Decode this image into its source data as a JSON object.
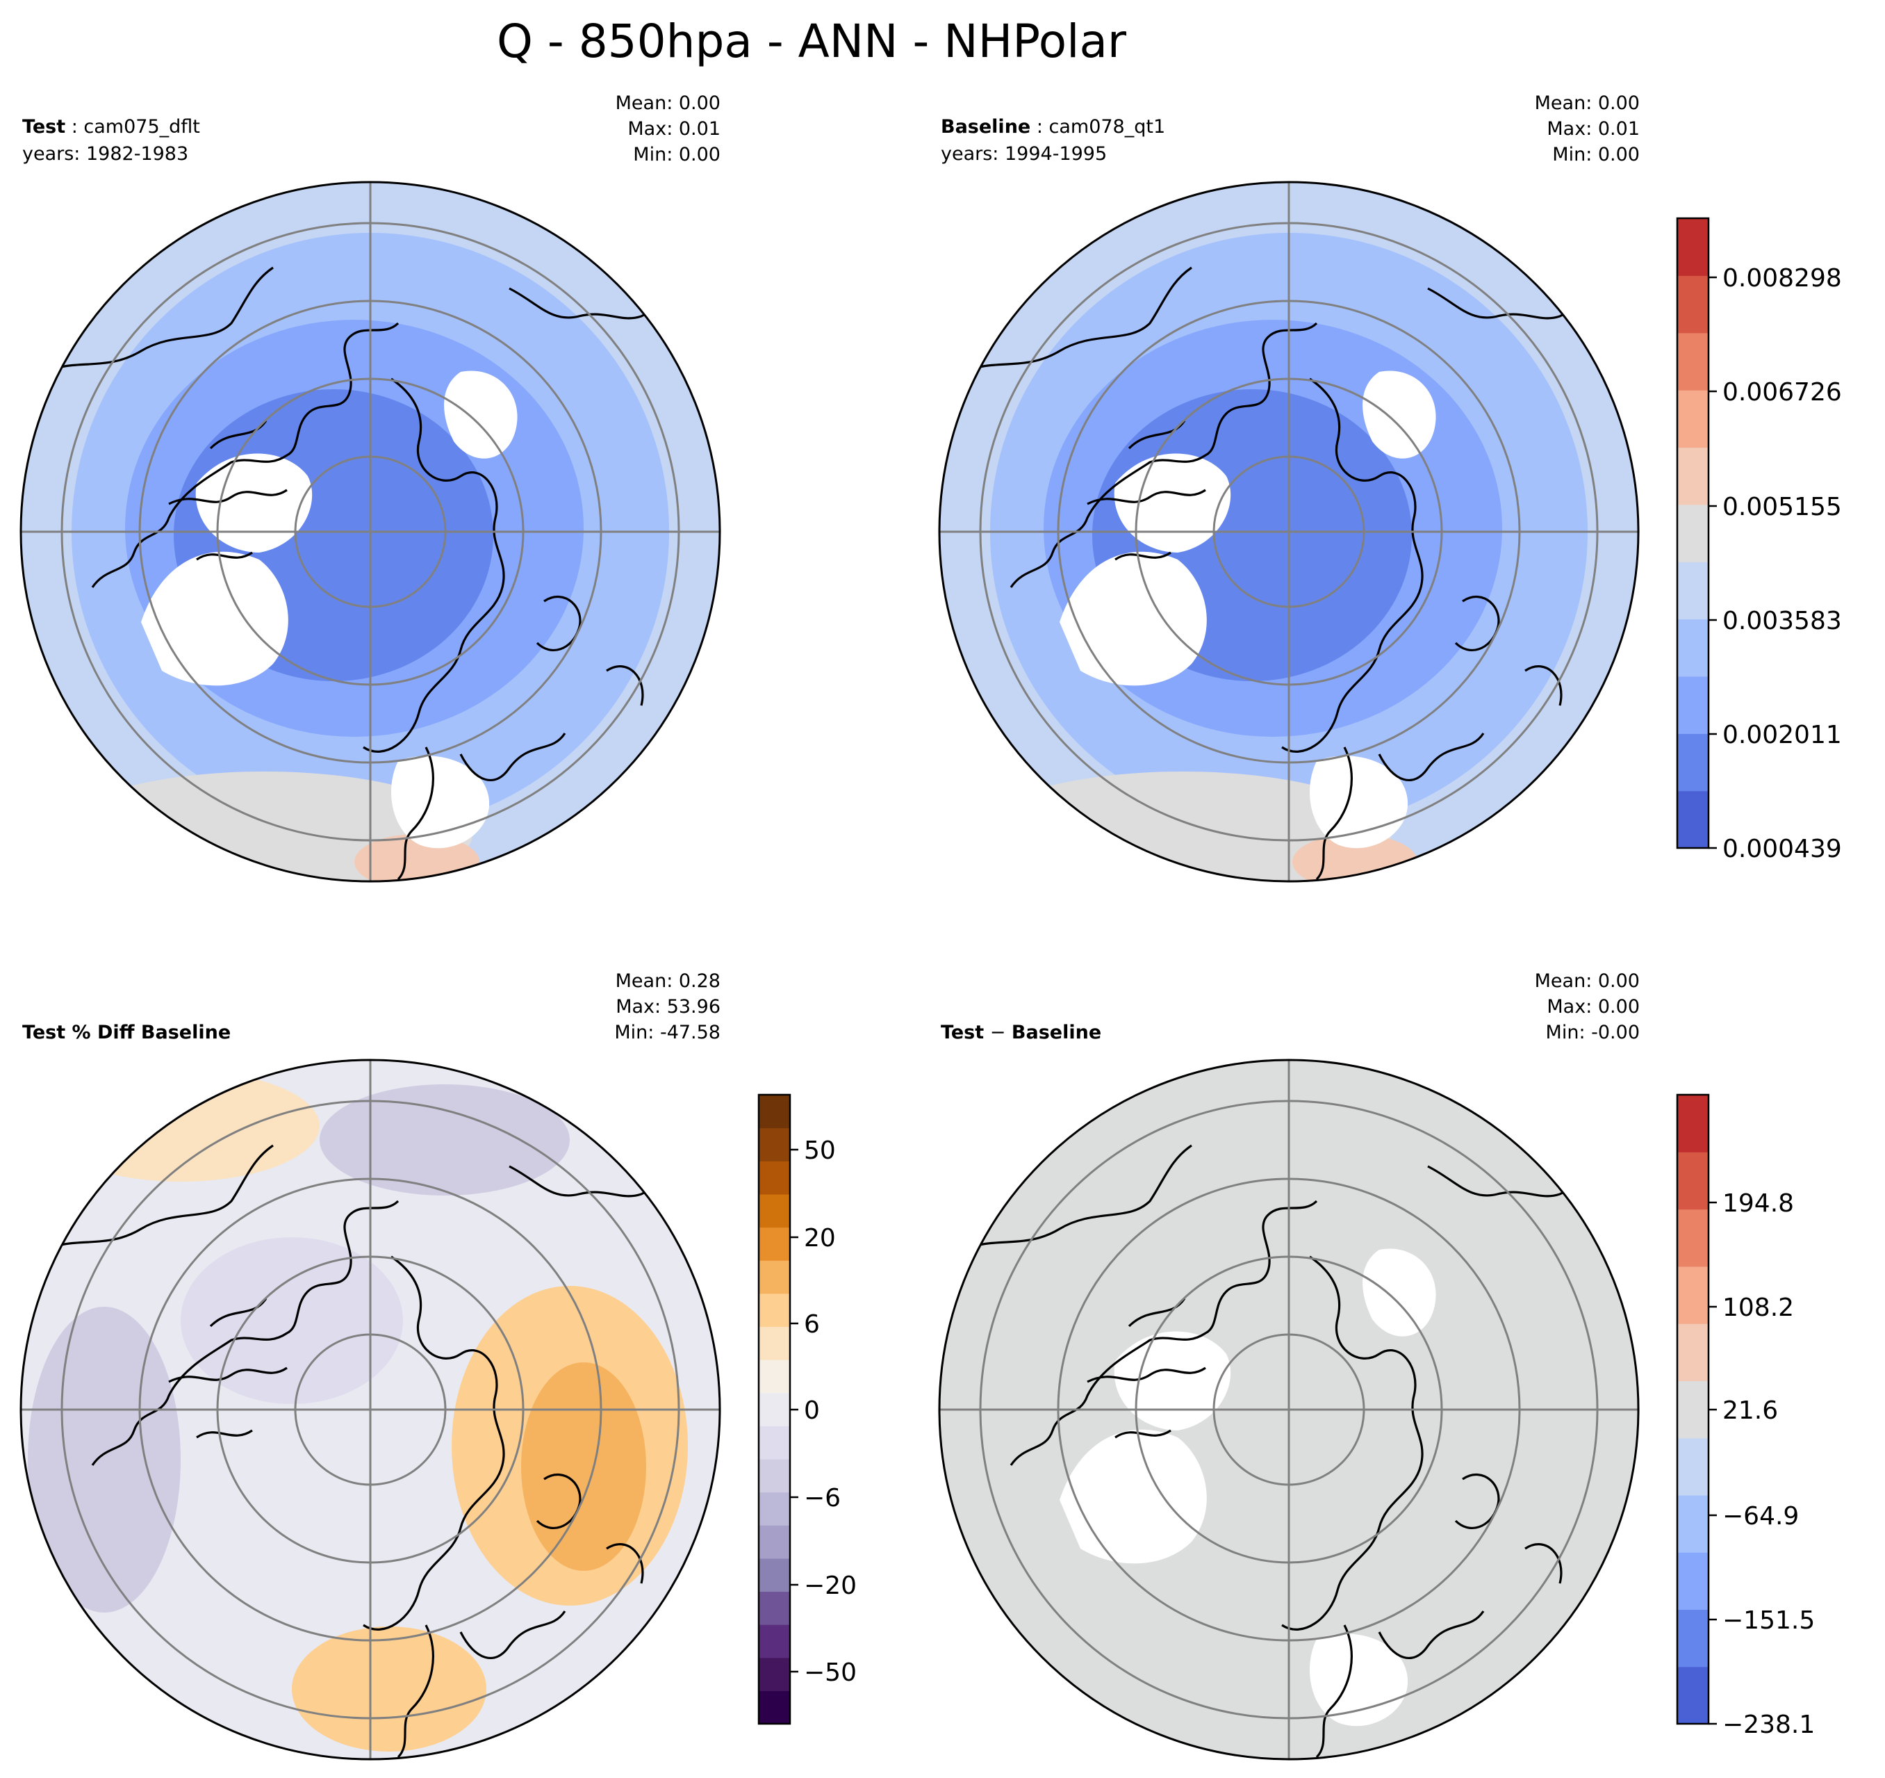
{
  "figure": {
    "title": "Q - 850hpa - ANN - NHPolar"
  },
  "panels": [
    {
      "id": "test",
      "label_bold": "Test",
      "label_sep": " : ",
      "label_rest": "cam075_dflt",
      "years": "years: 1982-1983",
      "stats": {
        "mean": "Mean:  0.00",
        "max": "Max:  0.01",
        "min": "Min:  0.00"
      },
      "fill": "#a9c3f5"
    },
    {
      "id": "baseline",
      "label_bold": "Baseline",
      "label_sep": " : ",
      "label_rest": "cam078_qt1",
      "years": "years: 1994-1995",
      "stats": {
        "mean": "Mean:  0.00",
        "max": "Max:  0.01",
        "min": "Min:  0.00"
      },
      "fill": "#a9c3f5"
    },
    {
      "id": "pctdiff",
      "label_bold": "Test % Diff Baseline",
      "label_sep": "",
      "label_rest": "",
      "years": "",
      "stats": {
        "mean": "Mean:  0.28",
        "max": "Max: 53.96",
        "min": "Min: -47.58"
      },
      "fill": "#e9e9f1"
    },
    {
      "id": "diff",
      "label_bold": "Test",
      "label_sep": " − ",
      "label_rest": "Baseline",
      "label_rest_bold": true,
      "years": "",
      "stats": {
        "mean": "Mean:  0.00",
        "max": "Max:  0.00",
        "min": "Min: -0.00"
      },
      "fill": "#dcdddd"
    }
  ],
  "colorbars": {
    "coolwarm": {
      "colors": [
        "#4a61d6",
        "#6486ec",
        "#86a7fb",
        "#a4c1fc",
        "#c4d6f4",
        "#dddddd",
        "#f2cab5",
        "#f5ab8c",
        "#ea8366",
        "#d65744",
        "#c02f2d"
      ],
      "ticks": [
        "0.000439",
        "0.002011",
        "0.003583",
        "0.005155",
        "0.006726",
        "0.008298"
      ]
    },
    "puor": {
      "colors": [
        "#2d004b",
        "#44165e",
        "#5a2d7e",
        "#6f5597",
        "#8b82b4",
        "#a6a0c8",
        "#bcb8d7",
        "#d0cde3",
        "#dfdded",
        "#eceaf1",
        "#f5efe5",
        "#fbe3c2",
        "#fdcf91",
        "#f6b35f",
        "#e88f2c",
        "#d0730d",
        "#b05606",
        "#8e4408",
        "#6f3407"
      ],
      "ticks": [
        "−50",
        "−20",
        "−6",
        "0",
        "6",
        "20",
        "50"
      ]
    },
    "diff": {
      "colors": [
        "#4a61d6",
        "#6486ec",
        "#86a7fb",
        "#a4c1fc",
        "#c4d6f4",
        "#dddddd",
        "#f2cab5",
        "#f5ab8c",
        "#ea8366",
        "#d65744",
        "#c02f2d"
      ],
      "ticks": [
        "−238.1",
        "−151.5",
        "−64.9",
        "21.6",
        "108.2",
        "194.8"
      ]
    }
  },
  "chart_data": {
    "type": "polar-contour-maps",
    "title": "Q - 850hpa - ANN - NHPolar",
    "variable": "Q",
    "level": "850hpa",
    "season": "ANN",
    "region": "NHPolar",
    "series": [
      {
        "name": "Test : cam075_dflt",
        "years": "1982-1983",
        "mean": 0.0,
        "max": 0.01,
        "min": 0.0
      },
      {
        "name": "Baseline : cam078_qt1",
        "years": "1994-1995",
        "mean": 0.0,
        "max": 0.01,
        "min": 0.0
      },
      {
        "name": "Test % Diff Baseline",
        "mean": 0.28,
        "max": 53.96,
        "min": -47.58
      },
      {
        "name": "Test − Baseline",
        "mean": 0.0,
        "max": 0.0,
        "min": -0.0
      }
    ],
    "colorbar_ticks": {
      "test_baseline": [
        0.000439,
        0.002011,
        0.003583,
        0.005155,
        0.006726,
        0.008298
      ],
      "pct_diff": [
        -50,
        -20,
        -6,
        0,
        6,
        20,
        50
      ],
      "diff": [
        -238.1,
        -151.5,
        -64.9,
        21.6,
        108.2,
        194.8
      ]
    }
  }
}
